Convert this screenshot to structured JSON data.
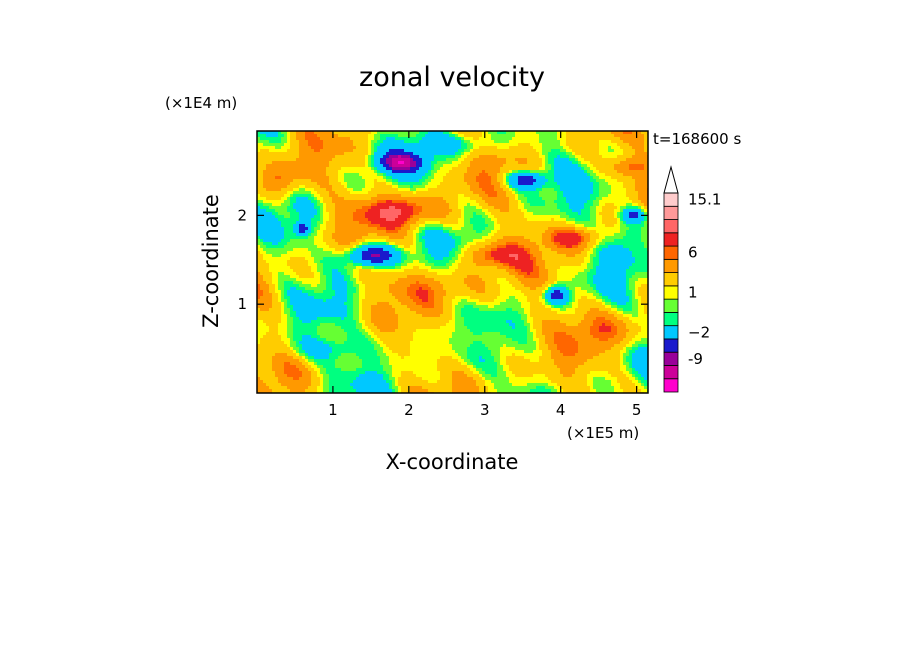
{
  "chart_data": {
    "type": "heatmap",
    "title": "zonal velocity",
    "xlabel": "X-coordinate",
    "ylabel": "Z-coordinate",
    "x_unit_label": "(×1E5 m)",
    "y_unit_label": "(×1E4 m)",
    "time_label": "t=168600 s",
    "xlim": [
      0,
      5.15
    ],
    "ylim": [
      0,
      2.95
    ],
    "x_ticks": [
      1,
      2,
      3,
      4,
      5
    ],
    "y_ticks": [
      1,
      2
    ],
    "colorbar": {
      "levels": [
        {
          "color": "#ff00cc"
        },
        {
          "color": "#cc0099"
        },
        {
          "color": "#990099"
        },
        {
          "color": "#1a1acc"
        },
        {
          "color": "#00c8ff"
        },
        {
          "color": "#00ff80"
        },
        {
          "color": "#66ff33"
        },
        {
          "color": "#ffff00"
        },
        {
          "color": "#ffcc00"
        },
        {
          "color": "#ff9900"
        },
        {
          "color": "#ff6600"
        },
        {
          "color": "#ee2222"
        },
        {
          "color": "#ff6666"
        },
        {
          "color": "#ff9999"
        },
        {
          "color": "#ffcccc"
        }
      ],
      "labels": [
        {
          "text": "-9",
          "value": -9
        },
        {
          "text": "−2",
          "value": -2
        },
        {
          "text": "1",
          "value": 1
        },
        {
          "text": "6",
          "value": 6
        },
        {
          "text": "15.1",
          "value": 15.1
        }
      ],
      "over_arrow": true
    },
    "features": [
      {
        "kind": "neg",
        "x": 1.5,
        "z": 1.55,
        "rx": 0.35,
        "rz": 0.13,
        "v": -11
      },
      {
        "kind": "neg",
        "x": 1.9,
        "z": 2.6,
        "rx": 0.32,
        "rz": 0.12,
        "v": -10
      },
      {
        "kind": "neg",
        "x": 3.55,
        "z": 2.4,
        "rx": 0.25,
        "rz": 0.1,
        "v": -9
      },
      {
        "kind": "neg",
        "x": 3.95,
        "z": 1.1,
        "rx": 0.15,
        "rz": 0.1,
        "v": -9
      },
      {
        "kind": "neg",
        "x": 4.95,
        "z": 2.0,
        "rx": 0.15,
        "rz": 0.08,
        "v": -8
      },
      {
        "kind": "neg",
        "x": 0.6,
        "z": 1.85,
        "rx": 0.1,
        "rz": 0.07,
        "v": -8
      },
      {
        "kind": "pos",
        "x": 1.9,
        "z": 2.05,
        "rx": 0.55,
        "rz": 0.18,
        "v": 7
      },
      {
        "kind": "pos",
        "x": 3.1,
        "z": 1.55,
        "rx": 0.4,
        "rz": 0.15,
        "v": 6
      },
      {
        "kind": "pos",
        "x": 4.2,
        "z": 1.75,
        "rx": 0.35,
        "rz": 0.12,
        "v": 6
      },
      {
        "kind": "pos",
        "x": 4.9,
        "z": 2.55,
        "rx": 0.3,
        "rz": 0.12,
        "v": 5
      },
      {
        "kind": "pos",
        "x": 0.3,
        "z": 2.4,
        "rx": 0.3,
        "rz": 0.2,
        "v": 5
      },
      {
        "kind": "pos",
        "x": 2.3,
        "z": 1.2,
        "rx": 0.6,
        "rz": 0.2,
        "v": 4
      },
      {
        "kind": "pos",
        "x": 4.6,
        "z": 0.7,
        "rx": 0.5,
        "rz": 0.2,
        "v": 4
      },
      {
        "kind": "zero",
        "x": 2.5,
        "z": 0.6,
        "rx": 1.0,
        "rz": 0.25,
        "v": 0
      },
      {
        "kind": "negsm",
        "x": 0.9,
        "z": 0.5,
        "rx": 0.6,
        "rz": 0.15,
        "v": -3
      },
      {
        "kind": "negsm",
        "x": 2.6,
        "z": 2.8,
        "rx": 0.6,
        "rz": 0.12,
        "v": -3
      },
      {
        "kind": "negsm",
        "x": 4.9,
        "z": 1.8,
        "rx": 0.25,
        "rz": 0.25,
        "v": -3
      }
    ]
  }
}
